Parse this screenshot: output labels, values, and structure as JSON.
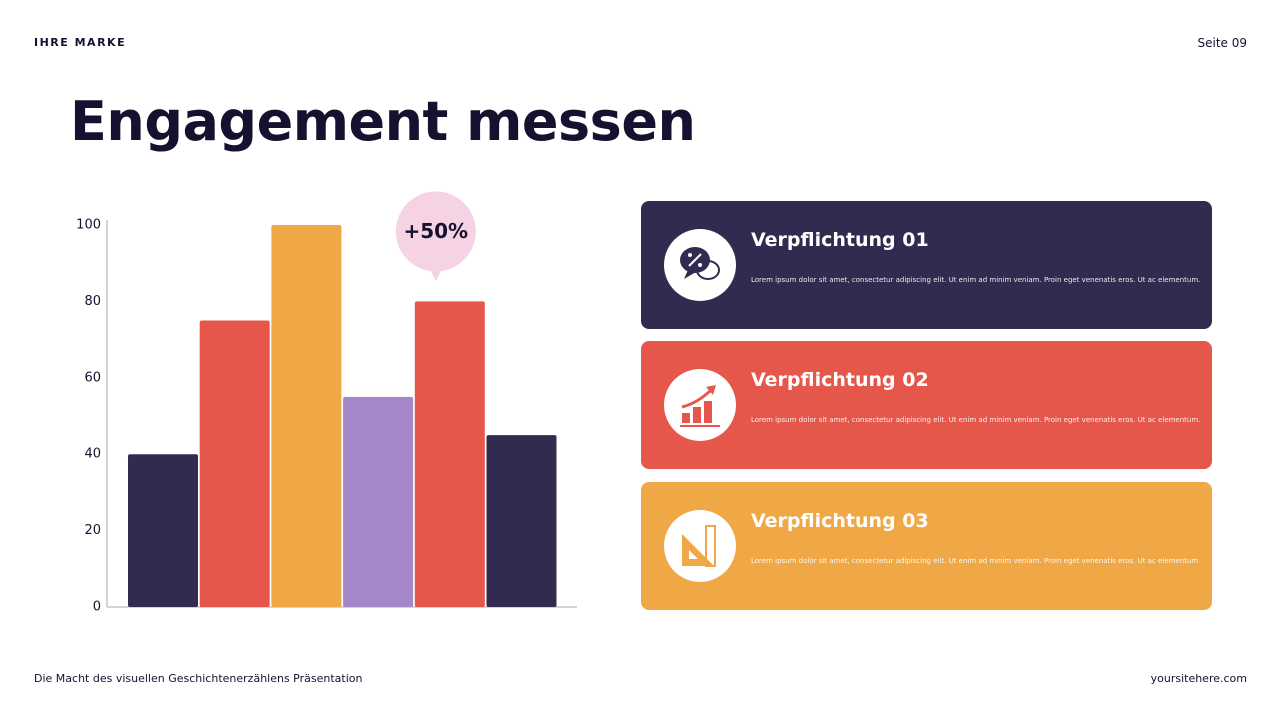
{
  "header": {
    "brand": "IHRE MARKE",
    "page": "Seite 09"
  },
  "title": "Engagement messen",
  "chart_data": {
    "type": "bar",
    "categories": [
      null,
      null,
      null,
      null,
      null,
      null
    ],
    "values": [
      40,
      75,
      100,
      55,
      80,
      45
    ],
    "colors": [
      "#322b4f",
      "#e5574a",
      "#efa845",
      "#a487c9",
      "#e5574a",
      "#322b4f"
    ],
    "ylim": [
      0,
      100
    ],
    "yticks": [
      0,
      20,
      40,
      60,
      80,
      100
    ],
    "grid": false,
    "annotation": "+50%"
  },
  "cards": [
    {
      "title": "Verpflichtung 01",
      "text": "Lorem ipsum dolor sit amet, consectetur adipiscing elit. Ut enim ad minim veniam. Proin eget venenatis eros. Ut ac elementum."
    },
    {
      "title": "Verpflichtung 02",
      "text": "Lorem ipsum dolor sit amet, consectetur adipiscing elit. Ut enim ad minim veniam. Proin eget venenatis eros. Ut ac elementum."
    },
    {
      "title": "Verpflichtung 03",
      "text": "Lorem ipsum dolor sit amet, consectetur adipiscing elit. Ut enim ad minim veniam. Proin eget venenatis eros. Ut ac elementum"
    }
  ],
  "footer": {
    "left": "Die Macht des visuellen Geschichtenerzählens Präsentation",
    "right": "yoursitehere.com"
  }
}
